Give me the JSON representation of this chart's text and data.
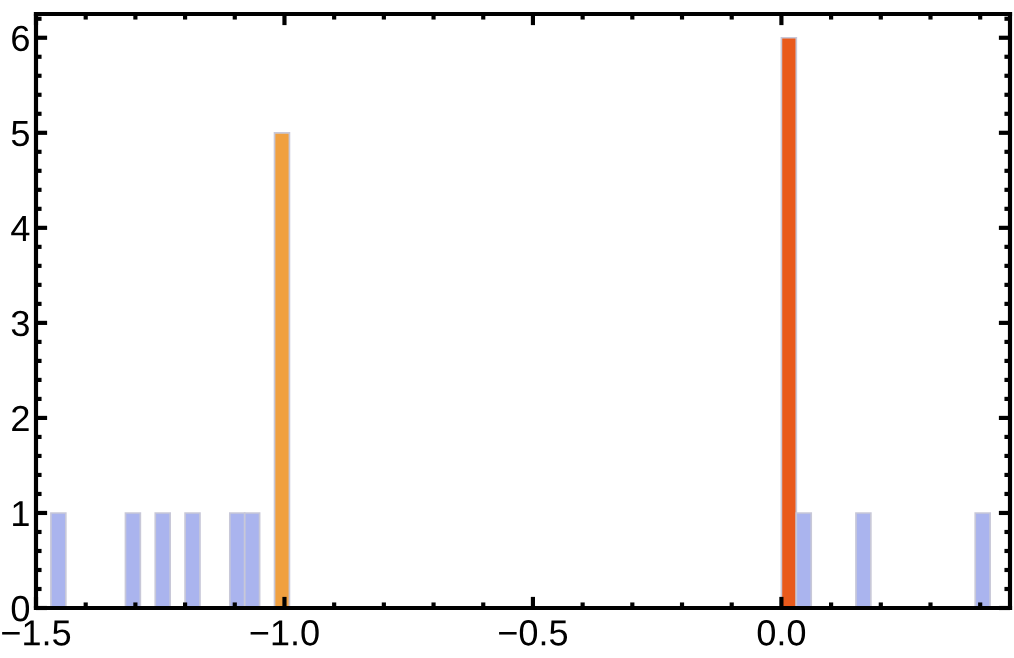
{
  "chart_data": {
    "type": "histogram",
    "bins": [
      -1.47,
      -1.44,
      -1.41,
      -1.38,
      -1.35,
      -1.32,
      -1.29,
      -1.26,
      -1.23,
      -1.2,
      -1.17,
      -1.14,
      -1.11,
      -1.08,
      -1.05,
      -1.02,
      -0.99,
      -0.96,
      -0.93,
      -0.9,
      -0.87,
      -0.84,
      -0.81,
      -0.78,
      -0.75,
      -0.72,
      -0.69,
      -0.66,
      -0.63,
      -0.6,
      -0.57,
      -0.54,
      -0.51,
      -0.48,
      -0.45,
      -0.42,
      -0.39,
      -0.36,
      -0.33,
      -0.3,
      -0.27,
      -0.24,
      -0.21,
      -0.18,
      -0.15,
      -0.12,
      -0.09,
      -0.06,
      -0.03,
      0,
      0.03,
      0.06,
      0.09,
      0.12,
      0.15,
      0.18,
      0.21,
      0.24,
      0.27,
      0.3,
      0.33,
      0.36,
      0.39,
      0.42
    ],
    "values": [
      1,
      0,
      0,
      0,
      0,
      1,
      0,
      1,
      0,
      1,
      0,
      0,
      1,
      1,
      0,
      5,
      0,
      0,
      0,
      0,
      0,
      0,
      0,
      0,
      0,
      0,
      0,
      0,
      0,
      0,
      0,
      0,
      0,
      0,
      0,
      0,
      0,
      0,
      0,
      0,
      0,
      0,
      0,
      0,
      0,
      0,
      0,
      0,
      0,
      6,
      1,
      0,
      0,
      0,
      1,
      0,
      0,
      0,
      0,
      0,
      0,
      0,
      1
    ],
    "colors": [
      "#aab4ee",
      "#aab4ee",
      "#aab4ee",
      "#aab4ee",
      "#aab4ee",
      "#aab4ee",
      "#aab4ee",
      "#aab4ee",
      "#aab4ee",
      "#aab4ee",
      "#aab4ee",
      "#aab4ee",
      "#aab4ee",
      "#aab4ee",
      "#aab4ee",
      "#f0a040",
      "#aab4ee",
      "#aab4ee",
      "#aab4ee",
      "#aab4ee",
      "#aab4ee",
      "#aab4ee",
      "#aab4ee",
      "#aab4ee",
      "#aab4ee",
      "#aab4ee",
      "#aab4ee",
      "#aab4ee",
      "#aab4ee",
      "#aab4ee",
      "#aab4ee",
      "#aab4ee",
      "#aab4ee",
      "#aab4ee",
      "#aab4ee",
      "#aab4ee",
      "#aab4ee",
      "#aab4ee",
      "#aab4ee",
      "#aab4ee",
      "#aab4ee",
      "#aab4ee",
      "#aab4ee",
      "#aab4ee",
      "#aab4ee",
      "#aab4ee",
      "#aab4ee",
      "#aab4ee",
      "#aab4ee",
      "#e95a1c",
      "#aab4ee",
      "#aab4ee",
      "#aab4ee",
      "#aab4ee",
      "#aab4ee",
      "#aab4ee",
      "#aab4ee",
      "#aab4ee",
      "#aab4ee",
      "#aab4ee",
      "#aab4ee",
      "#aab4ee",
      "#aab4ee"
    ],
    "xlim": [
      -1.5,
      0.46
    ],
    "ylim": [
      0,
      6.25
    ],
    "xticks": [
      {
        "value": -1.5,
        "label": "−1.5"
      },
      {
        "value": -1.0,
        "label": "−1.0"
      },
      {
        "value": -0.5,
        "label": "−0.5"
      },
      {
        "value": 0.0,
        "label": "0.0"
      }
    ],
    "yticks": [
      0,
      1,
      2,
      3,
      4,
      5,
      6
    ],
    "grid": false
  }
}
